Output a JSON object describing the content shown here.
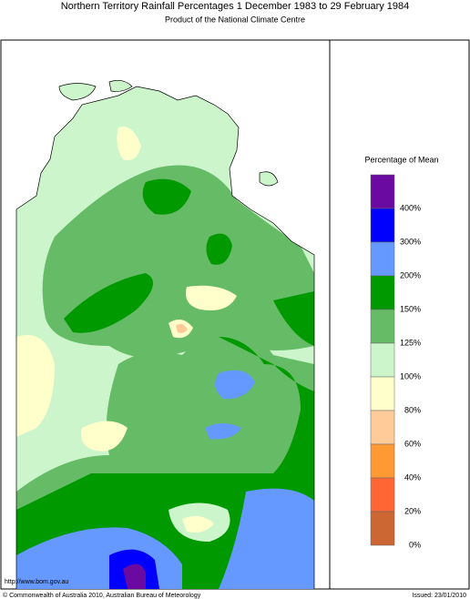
{
  "header": {
    "title": "Northern Territory Rainfall Percentages 1 December 1983 to 29 February 1984",
    "subtitle": "Product of the National Climate Centre"
  },
  "legend": {
    "title": "Percentage of Mean",
    "colors": [
      "#6a0aa0",
      "#0000ff",
      "#6699ff",
      "#009900",
      "#66bb66",
      "#ccf5cc",
      "#ffffcc",
      "#ffcc99",
      "#ff9933",
      "#ff6633",
      "#cc6633"
    ],
    "labels": [
      "400%",
      "300%",
      "200%",
      "150%",
      "125%",
      "100%",
      "80%",
      "60%",
      "40%",
      "20%",
      "0%"
    ]
  },
  "footer": {
    "url": "http://www.bom.gov.au",
    "copyright": "© Commonwealth of Australia 2010, Australian Bureau of Meteorology",
    "issued": "Issued: 23/01/2010"
  }
}
